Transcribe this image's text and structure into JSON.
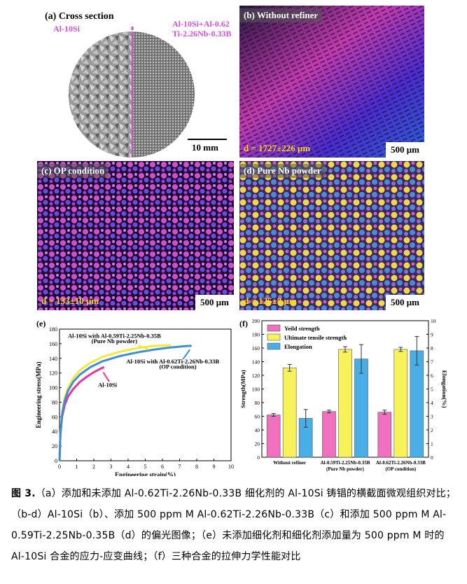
{
  "panels": {
    "a": {
      "label": "(a) Cross section",
      "left_tag": "Al-10Si",
      "right_tag_line1": "Al-10Si+Al-0.62",
      "right_tag_line2": "Ti-2.26Nb-0.33B",
      "scale": "10 mm"
    },
    "b": {
      "label": "(b) Without refiner",
      "grain": "d = 1727±226 μm",
      "scale": "500 μm"
    },
    "c": {
      "label": "(c) OP condition",
      "grain": "d = 133±10 μm",
      "scale": "500 μm"
    },
    "d": {
      "label": "(d) Pure Nb powder",
      "grain": "d = 125±8 μm",
      "scale": "500 μm"
    }
  },
  "chart_data": [
    {
      "panel": "(e)",
      "type": "line",
      "xlabel": "Engineering strain(%)",
      "ylabel": "Engineering stress(MPa)",
      "xlim": [
        0,
        10
      ],
      "ylim": [
        0,
        180
      ],
      "xticks": [
        "0",
        "1",
        "2",
        "3",
        "4",
        "5",
        "6",
        "7",
        "8",
        "9",
        "10"
      ],
      "yticks": [
        "0",
        "20",
        "40",
        "60",
        "80",
        "100",
        "120",
        "140",
        "160",
        "180"
      ],
      "series": [
        {
          "name": "Al-10Si",
          "color": "#e8359a",
          "x": [
            0,
            0.05,
            0.15,
            0.3,
            0.5,
            0.8,
            1.2,
            1.6,
            2.0,
            2.4,
            2.6
          ],
          "y": [
            0,
            35,
            60,
            76,
            88,
            98,
            108,
            115,
            121,
            126,
            128
          ]
        },
        {
          "name": "Al-10Si with Al-0.59Ti-2.25Nb-0.35B (Pure Nb powder)",
          "color": "#f2ea3a",
          "x": [
            0,
            0.05,
            0.15,
            0.3,
            0.5,
            0.8,
            1.2,
            1.8,
            2.5,
            3.5,
            4.5,
            5.5,
            6.5
          ],
          "y": [
            0,
            38,
            66,
            86,
            100,
            113,
            124,
            134,
            142,
            149,
            154,
            157,
            158
          ]
        },
        {
          "name": "Al-10Si with Al-0.62Ti-2.26Nb-0.33B (OP condition)",
          "color": "#3a8fd8",
          "x": [
            0,
            0.05,
            0.15,
            0.3,
            0.5,
            0.8,
            1.2,
            1.8,
            2.5,
            3.5,
            4.5,
            5.5,
            6.5,
            7.5,
            7.7
          ],
          "y": [
            0,
            36,
            63,
            82,
            96,
            108,
            118,
            128,
            136,
            143,
            148,
            152,
            155,
            157,
            157
          ]
        }
      ],
      "annotations": [
        "Al-10Si with Al-0.59Ti-2.25Nb-0.35B",
        "(Pure Nb powder)",
        "Al-10Si with Al-0.62Ti-2.26Nb-0.33B",
        "(OP condition)",
        "Al-10Si"
      ]
    },
    {
      "panel": "(f)",
      "type": "bar",
      "categories": [
        "Without refiner",
        "Al-0.59Ti-2.25Nb-0.35B\n(Pure Nb powder)",
        "Al-0.62Ti-2.26Nb-0.33B\n(OP condition)"
      ],
      "category_lines": [
        [
          "Without refiner"
        ],
        [
          "Al-0.59Ti-2.25Nb-0.35B",
          "(Pure Nb powder)"
        ],
        [
          "Al-0.62Ti-2.26Nb-0.33B",
          "(OP condition)"
        ]
      ],
      "ylabel": "Strength(MPa)",
      "y2label": "Elongation(%)",
      "ylim": [
        0,
        200
      ],
      "y2lim": [
        0,
        10
      ],
      "yticks": [
        "0",
        "20",
        "40",
        "60",
        "80",
        "100",
        "120",
        "140",
        "160",
        "180",
        "200"
      ],
      "y2ticks": [
        "0",
        "1",
        "2",
        "3",
        "4",
        "5",
        "6",
        "7",
        "8",
        "9",
        "10"
      ],
      "series": [
        {
          "name": "Yeild strength",
          "axis": "left",
          "color": "#f06fbe",
          "values": [
            62,
            67,
            66
          ],
          "errors": [
            2,
            2,
            3
          ]
        },
        {
          "name": "Ultimate tensile strength",
          "axis": "left",
          "color": "#f7f25a",
          "values": [
            131,
            158,
            158
          ],
          "errors": [
            5,
            4,
            3
          ]
        },
        {
          "name": "Elongation",
          "axis": "right",
          "color": "#4aaee6",
          "values": [
            2.85,
            7.2,
            7.8
          ],
          "errors": [
            0.65,
            1.05,
            1.05
          ]
        }
      ]
    }
  ],
  "caption": {
    "fig": "图 3.",
    "text": "（a）添加和未添加 Al-0.62Ti-2.26Nb-0.33B 细化剂的 Al-10Si 铸锠的横截面微观组织对比；（b-d）Al-10Si（b）、添加 500 ppm M Al-0.62Ti-2.26Nb-0.33B（c）和添加 500 ppm M Al-0.59Ti-2.25Nb-0.35B（d）的偏光图像；（e）未添加细化剂和细化剂添加量为 500 ppm M 时的 Al-10Si 合金的应力-应变曲线；（f）三种合金的拉伸力学性能对比"
  }
}
